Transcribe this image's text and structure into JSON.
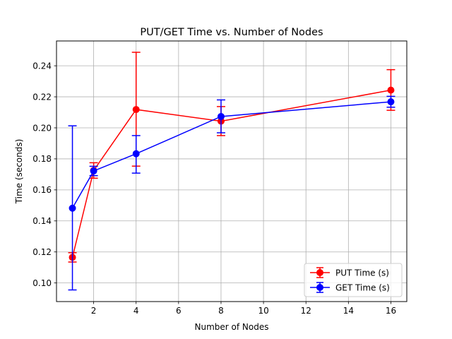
{
  "chart_data": {
    "type": "line",
    "title": "PUT/GET Time vs. Number of Nodes",
    "xlabel": "Number of Nodes",
    "ylabel": "Time (seconds)",
    "xlim": [
      0.25,
      16.75
    ],
    "ylim": [
      0.088,
      0.256
    ],
    "xticks": [
      2,
      4,
      6,
      8,
      10,
      12,
      14,
      16
    ],
    "yticks": [
      0.1,
      0.12,
      0.14,
      0.16,
      0.18,
      0.2,
      0.22,
      0.24
    ],
    "ytick_labels": [
      "0.10",
      "0.12",
      "0.14",
      "0.16",
      "0.18",
      "0.20",
      "0.22",
      "0.24"
    ],
    "grid": true,
    "legend_position": "lower-right",
    "x": [
      1,
      2,
      4,
      8,
      16
    ],
    "series": [
      {
        "name": "PUT Time (s)",
        "color": "#ff0000",
        "values": [
          0.1165,
          0.1725,
          0.2118,
          0.2043,
          0.2243
        ],
        "err_low": [
          0.1135,
          0.1675,
          0.1753,
          0.195,
          0.2113
        ],
        "err_high": [
          0.1195,
          0.1775,
          0.2487,
          0.2137,
          0.2375
        ]
      },
      {
        "name": "GET Time (s)",
        "color": "#0000ff",
        "values": [
          0.1482,
          0.1722,
          0.1833,
          0.2073,
          0.2168
        ],
        "err_low": [
          0.0955,
          0.1692,
          0.1708,
          0.1968,
          0.2133
        ],
        "err_high": [
          0.2013,
          0.1752,
          0.195,
          0.218,
          0.2203
        ]
      }
    ]
  }
}
